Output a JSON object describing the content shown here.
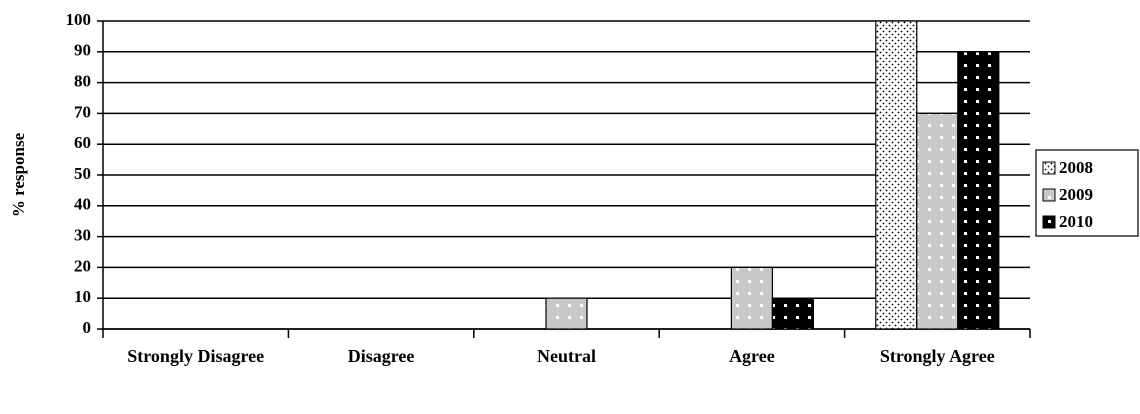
{
  "chart_data": {
    "type": "bar",
    "y_label": "% response",
    "categories": [
      "Strongly Disagree",
      "Disagree",
      "Neutral",
      "Agree",
      "Strongly Agree"
    ],
    "series": [
      {
        "name": "2008",
        "color": "#ffffff",
        "values": [
          0,
          0,
          0,
          0,
          100
        ]
      },
      {
        "name": "2009",
        "color": "#c8c8c8",
        "values": [
          0,
          0,
          10,
          20,
          70
        ]
      },
      {
        "name": "2010",
        "color": "#000000",
        "values": [
          0,
          0,
          0,
          10,
          90
        ]
      }
    ],
    "ylim": [
      0,
      100
    ],
    "yticks": [
      0,
      10,
      20,
      30,
      40,
      50,
      60,
      70,
      80,
      90,
      100
    ],
    "grid": true,
    "legend": "right"
  }
}
